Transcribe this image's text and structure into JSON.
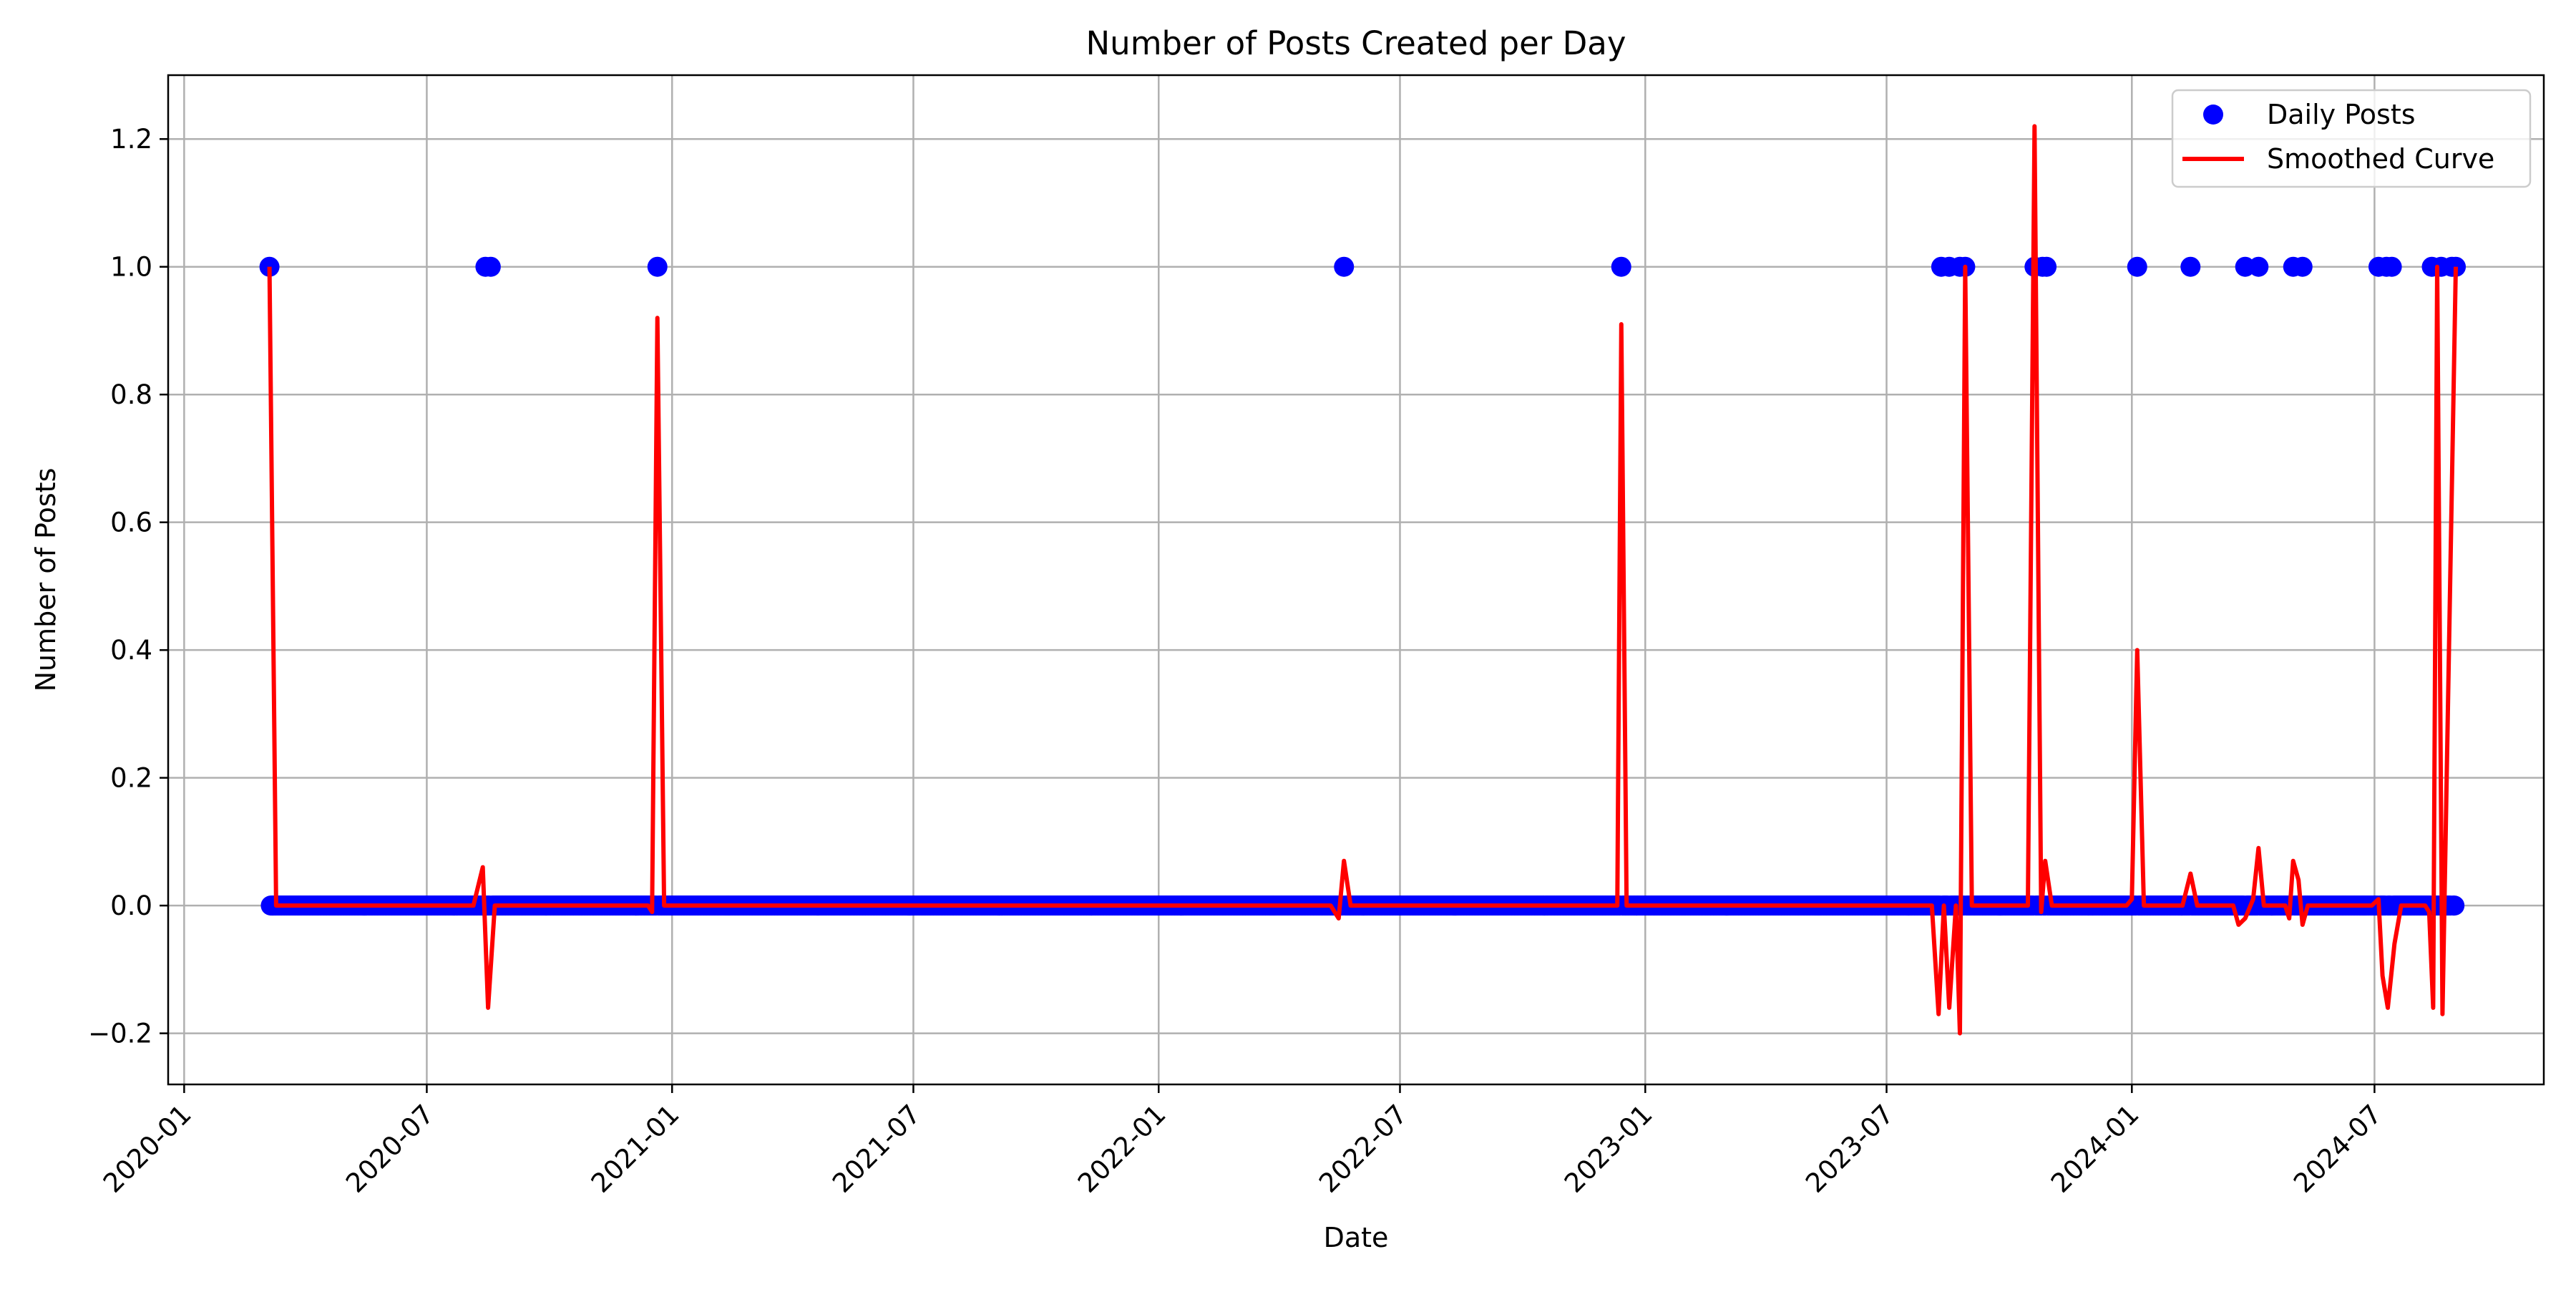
{
  "chart_data": {
    "type": "line",
    "title": "Number of Posts Created per Day",
    "xlabel": "Date",
    "ylabel": "Number of Posts",
    "xlim": [
      "2019-12-20",
      "2024-11-05"
    ],
    "ylim": [
      -0.28,
      1.3
    ],
    "grid": true,
    "legend_position": "top-right",
    "x_ticks": [
      "2020-01",
      "2020-07",
      "2021-01",
      "2021-07",
      "2022-01",
      "2022-07",
      "2023-01",
      "2023-07",
      "2024-01",
      "2024-07"
    ],
    "y_ticks": [
      -0.2,
      0.0,
      0.2,
      0.4,
      0.6,
      0.8,
      1.0,
      1.2
    ],
    "y_tick_labels": [
      "−0.2",
      "0.0",
      "0.2",
      "0.4",
      "0.6",
      "0.8",
      "1.0",
      "1.2"
    ],
    "series": [
      {
        "name": "Daily Posts",
        "kind": "scatter",
        "color": "#0000ff",
        "zero_range": [
          "2020-03-05",
          "2024-08-31"
        ],
        "post_dates": [
          "2020-03-05",
          "2020-08-14",
          "2020-08-18",
          "2020-12-21",
          "2022-05-20",
          "2022-12-14",
          "2023-08-11",
          "2023-08-17",
          "2023-08-25",
          "2023-08-29",
          "2023-10-20",
          "2023-10-26",
          "2023-10-29",
          "2024-01-05",
          "2024-02-14",
          "2024-03-26",
          "2024-04-05",
          "2024-05-01",
          "2024-05-08",
          "2024-07-04",
          "2024-07-10",
          "2024-07-14",
          "2024-08-13",
          "2024-08-20",
          "2024-08-28",
          "2024-08-31"
        ]
      },
      {
        "name": "Smoothed Curve",
        "kind": "line",
        "color": "#ff0000",
        "points": [
          [
            "2020-03-05",
            1.0
          ],
          [
            "2020-03-10",
            0.0
          ],
          [
            "2020-08-05",
            0.0
          ],
          [
            "2020-08-12",
            0.06
          ],
          [
            "2020-08-16",
            -0.16
          ],
          [
            "2020-08-21",
            0.0
          ],
          [
            "2020-12-14",
            0.0
          ],
          [
            "2020-12-17",
            -0.01
          ],
          [
            "2020-12-21",
            0.92
          ],
          [
            "2020-12-26",
            0.0
          ],
          [
            "2022-05-10",
            0.0
          ],
          [
            "2022-05-16",
            -0.02
          ],
          [
            "2022-05-20",
            0.07
          ],
          [
            "2022-05-25",
            0.0
          ],
          [
            "2022-12-09",
            0.0
          ],
          [
            "2022-12-11",
            0.0
          ],
          [
            "2022-12-14",
            0.91
          ],
          [
            "2022-12-18",
            0.0
          ],
          [
            "2023-08-04",
            0.0
          ],
          [
            "2023-08-09",
            -0.17
          ],
          [
            "2023-08-13",
            0.0
          ],
          [
            "2023-08-17",
            -0.16
          ],
          [
            "2023-08-22",
            0.0
          ],
          [
            "2023-08-25",
            -0.2
          ],
          [
            "2023-08-29",
            1.0
          ],
          [
            "2023-09-03",
            0.0
          ],
          [
            "2023-10-15",
            0.0
          ],
          [
            "2023-10-20",
            1.22
          ],
          [
            "2023-10-25",
            -0.01
          ],
          [
            "2023-10-28",
            0.07
          ],
          [
            "2023-11-02",
            0.0
          ],
          [
            "2023-12-28",
            0.0
          ],
          [
            "2024-01-01",
            0.01
          ],
          [
            "2024-01-05",
            0.4
          ],
          [
            "2024-01-10",
            0.0
          ],
          [
            "2024-02-08",
            0.0
          ],
          [
            "2024-02-14",
            0.05
          ],
          [
            "2024-02-19",
            0.0
          ],
          [
            "2024-03-17",
            0.0
          ],
          [
            "2024-03-21",
            -0.03
          ],
          [
            "2024-03-26",
            -0.02
          ],
          [
            "2024-04-01",
            0.01
          ],
          [
            "2024-04-05",
            0.09
          ],
          [
            "2024-04-09",
            0.0
          ],
          [
            "2024-04-25",
            0.0
          ],
          [
            "2024-04-28",
            -0.02
          ],
          [
            "2024-05-01",
            0.07
          ],
          [
            "2024-05-05",
            0.04
          ],
          [
            "2024-05-08",
            -0.03
          ],
          [
            "2024-05-12",
            0.0
          ],
          [
            "2024-06-29",
            0.0
          ],
          [
            "2024-07-04",
            0.01
          ],
          [
            "2024-07-07",
            -0.11
          ],
          [
            "2024-07-11",
            -0.16
          ],
          [
            "2024-07-16",
            -0.06
          ],
          [
            "2024-07-21",
            0.0
          ],
          [
            "2024-08-08",
            0.0
          ],
          [
            "2024-08-11",
            -0.01
          ],
          [
            "2024-08-14",
            -0.16
          ],
          [
            "2024-08-17",
            1.0
          ],
          [
            "2024-08-21",
            -0.17
          ],
          [
            "2024-08-31",
            1.0
          ]
        ]
      }
    ]
  }
}
